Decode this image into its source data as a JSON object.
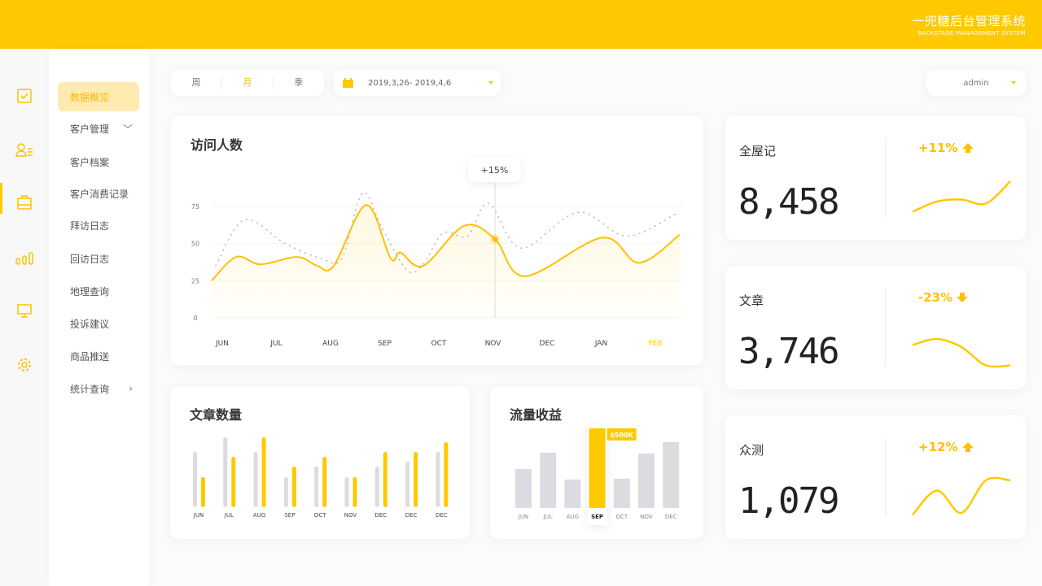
{
  "header": {
    "title": "一兜糖后台管理系统",
    "subtitle": "BACKSTAGE MANAGEMENT SYSTEM"
  },
  "rail": [
    {
      "icon": "checkbox-icon"
    },
    {
      "icon": "user-list-icon",
      "active": true
    },
    {
      "icon": "briefcase-icon"
    },
    {
      "icon": "bar-chart-icon"
    },
    {
      "icon": "monitor-icon"
    },
    {
      "icon": "gear-icon"
    }
  ],
  "submenu": [
    {
      "label": "数据概览",
      "active": true
    },
    {
      "label": "客户管理",
      "chevron": "down"
    },
    {
      "label": "客户档案"
    },
    {
      "label": "客户消费记录"
    },
    {
      "label": "拜访日志"
    },
    {
      "label": "回访日志"
    },
    {
      "label": "地理查询"
    },
    {
      "label": "投诉建议"
    },
    {
      "label": "商品推送"
    },
    {
      "label": "统计查询",
      "chevron": "right"
    }
  ],
  "period": {
    "options": [
      "周",
      "月",
      "季"
    ],
    "selected": "月"
  },
  "date_range": "2019,3,26- 2019,4,6",
  "user": "admin",
  "colors": {
    "accent": "#FFC900",
    "gray_bar": "#DCDBE0"
  },
  "visits": {
    "title": "访问人数",
    "tooltip": "+15%",
    "chart_data": {
      "type": "line",
      "categories": [
        "JUN",
        "JUL",
        "AUG",
        "SEP",
        "OCT",
        "NOV",
        "DEC",
        "JAN",
        "FEB"
      ],
      "highlight_category": "FEB",
      "yticks": [
        0,
        25,
        50,
        75
      ],
      "ylim": [
        0,
        90
      ],
      "grid": true,
      "series": [
        {
          "style": "solid",
          "x": [
            -0.2,
            0.26,
            0.71,
            1.38,
            1.76,
            2.06,
            2.66,
            3.11,
            3.29,
            3.71,
            4.47,
            5.04,
            5.59,
            7.02,
            7.7,
            8.45
          ],
          "values": [
            25,
            41,
            36,
            41,
            35,
            35,
            76,
            40,
            44,
            35,
            62,
            53,
            28,
            54,
            37,
            56
          ]
        },
        {
          "style": "dotted",
          "x": [
            -0.12,
            0.41,
            1.16,
            1.83,
            2.21,
            2.59,
            2.96,
            3.41,
            3.71,
            4.08,
            4.53,
            4.92,
            5.52,
            6.57,
            7.47,
            8.38
          ],
          "values": [
            35,
            66,
            50,
            40,
            40,
            84,
            60,
            32,
            36,
            57,
            55,
            77,
            47,
            71,
            55,
            70
          ]
        }
      ],
      "marker": {
        "x": 5.04,
        "value": 53
      }
    }
  },
  "articles": {
    "title": "文章数量",
    "chart_data": {
      "type": "bar",
      "categories": [
        "JUN",
        "JUL",
        "AUG",
        "SEP",
        "OCT",
        "NOV",
        "DEC",
        "DEC",
        "DEC"
      ],
      "series": [
        {
          "color": "gray",
          "values": [
            68,
            86,
            68,
            37,
            50,
            37,
            50,
            56,
            68
          ]
        },
        {
          "color": "yellow",
          "values": [
            37,
            62,
            86,
            50,
            62,
            37,
            68,
            68,
            80
          ]
        }
      ],
      "ylim": [
        0,
        90
      ]
    }
  },
  "traffic": {
    "title": "流量收益",
    "chart_data": {
      "type": "bar",
      "categories": [
        "JUN",
        "JUL",
        "AUG",
        "SEP",
        "OCT",
        "NOV",
        "DEC"
      ],
      "values": [
        48,
        68,
        35,
        98,
        36,
        67,
        81
      ],
      "highlight_index": 3,
      "highlight_label": "$500K",
      "ylim": [
        0,
        100
      ]
    }
  },
  "stats": [
    {
      "name": "全屋记",
      "value": "8,458",
      "change": "+11%",
      "direction": "up",
      "spark": [
        0.15,
        0.4,
        0.45,
        0.35,
        0.9
      ]
    },
    {
      "name": "文章",
      "value": "3,746",
      "change": "-23%",
      "direction": "down",
      "spark": [
        0.55,
        0.7,
        0.5,
        0.05,
        0.05
      ]
    },
    {
      "name": "众测",
      "value": "1,079",
      "change": "+12%",
      "direction": "up",
      "spark": [
        0.05,
        0.65,
        0.1,
        0.9,
        0.9
      ]
    }
  ]
}
